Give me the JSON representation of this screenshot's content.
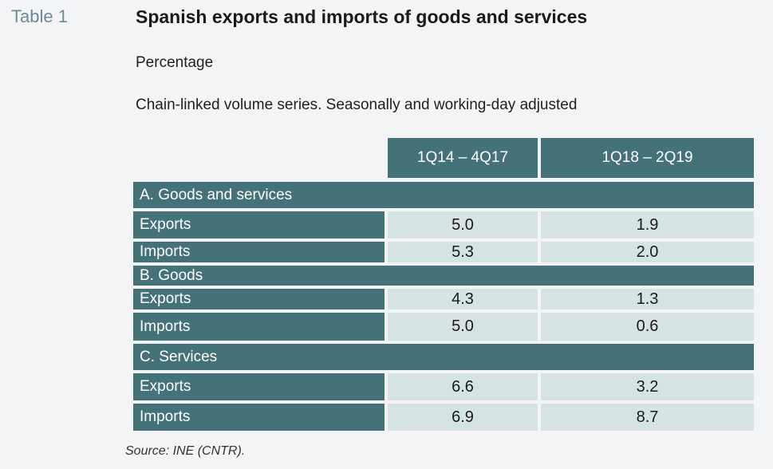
{
  "tag": "Table 1",
  "title": "Spanish exports and imports of goods and services",
  "subtitle": "Percentage",
  "note": "Chain-linked volume series. Seasonally and working-day adjusted",
  "columns": [
    "1Q14 – 4Q17",
    "1Q18 – 2Q19"
  ],
  "sections": [
    {
      "label": "A. Goods and services",
      "rows": [
        {
          "label": "Exports",
          "values": [
            "5.0",
            "1.9"
          ]
        },
        {
          "label": "Imports",
          "values": [
            "5.3",
            "2.0"
          ]
        }
      ]
    },
    {
      "label": "B. Goods",
      "rows": [
        {
          "label": "Exports",
          "values": [
            "4.3",
            "1.3"
          ]
        },
        {
          "label": "Imports",
          "values": [
            "5.0",
            "0.6"
          ]
        }
      ]
    },
    {
      "label": "C. Services",
      "rows": [
        {
          "label": "Exports",
          "values": [
            "6.6",
            "3.2"
          ]
        },
        {
          "label": "Imports",
          "values": [
            "6.9",
            "8.7"
          ]
        }
      ]
    }
  ],
  "source": "Source: INE (CNTR)."
}
